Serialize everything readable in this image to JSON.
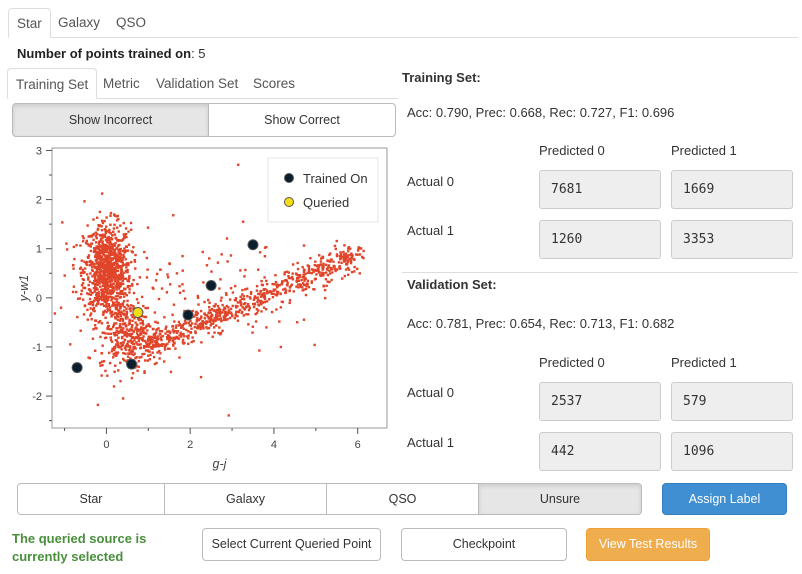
{
  "class_tabs": [
    "Star",
    "Galaxy",
    "QSO"
  ],
  "points_trained": {
    "label": "Number of points trained on",
    "value": ": 5"
  },
  "sub_tabs": [
    "Training Set",
    "Metric",
    "Validation Set",
    "Scores"
  ],
  "toggle": {
    "incorrect": "Show Incorrect",
    "correct": "Show Correct"
  },
  "plot": {
    "xlabel": "g-j",
    "ylabel": "y-w1",
    "legend": {
      "trained": "Trained On",
      "queried": "Queried"
    },
    "colors": {
      "points": "#e0452a",
      "trained": "#0b1e2e",
      "queried": "#f5dc14"
    }
  },
  "chart_data": {
    "type": "scatter",
    "xlabel": "g-j",
    "ylabel": "y-w1",
    "xlim": [
      -1.3,
      6.7
    ],
    "ylim": [
      -2.65,
      3.05
    ],
    "x_ticks": [
      "0",
      "2",
      "4",
      "6"
    ],
    "y_ticks": [
      "3",
      "2",
      "1",
      "0",
      "-1",
      "-2"
    ],
    "series": [
      {
        "name": "Trained On",
        "points": [
          [
            -0.7,
            -1.42
          ],
          [
            0.6,
            -1.35
          ],
          [
            1.95,
            -0.35
          ],
          [
            2.5,
            0.25
          ],
          [
            3.5,
            1.08
          ]
        ]
      },
      {
        "name": "Queried",
        "points": [
          [
            0.75,
            -0.3
          ]
        ]
      }
    ]
  },
  "training": {
    "title": "Training Set:",
    "metrics": "Acc: 0.790, Prec: 0.668, Rec: 0.727, F1: 0.696",
    "pred0": "Predicted 0",
    "pred1": "Predicted 1",
    "act0": "Actual 0",
    "act1": "Actual 1",
    "cells": [
      "7681",
      "1669",
      "1260",
      "3353"
    ]
  },
  "validation": {
    "title": "Validation Set:",
    "metrics": "Acc: 0.781, Prec: 0.654, Rec: 0.713, F1: 0.682",
    "pred0": "Predicted 0",
    "pred1": "Predicted 1",
    "act0": "Actual 0",
    "act1": "Actual 1",
    "cells": [
      "2537",
      "579",
      "442",
      "1096"
    ]
  },
  "label_buttons": [
    "Star",
    "Galaxy",
    "QSO",
    "Unsure"
  ],
  "assign_label": "Assign Label",
  "status_text": "The queried source is currently selected",
  "actions": {
    "select": "Select Current Queried Point",
    "checkpoint": "Checkpoint",
    "view": "View Test Results"
  }
}
